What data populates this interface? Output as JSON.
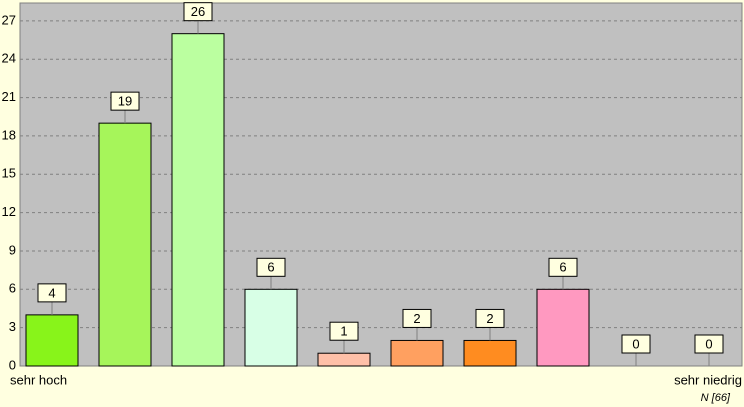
{
  "chart_data": {
    "type": "bar",
    "categories": [
      "sehr hoch",
      null,
      null,
      null,
      null,
      null,
      null,
      null,
      null,
      "sehr niedrig"
    ],
    "values": [
      4,
      19,
      26,
      6,
      1,
      2,
      2,
      6,
      0,
      0
    ],
    "colors": [
      "#88f41a",
      "#a6f55a",
      "#bbffa0",
      "#d8ffe6",
      "#ffc0a8",
      "#ffa060",
      "#ff8c20",
      "#ff99c0",
      "#ff99c0",
      "#ff99c0"
    ],
    "ylim": [
      0,
      28.4
    ],
    "yticks": [
      0,
      3,
      6,
      9,
      12,
      15,
      18,
      21,
      24,
      27
    ],
    "grid": true,
    "annotation": "N [66]"
  }
}
